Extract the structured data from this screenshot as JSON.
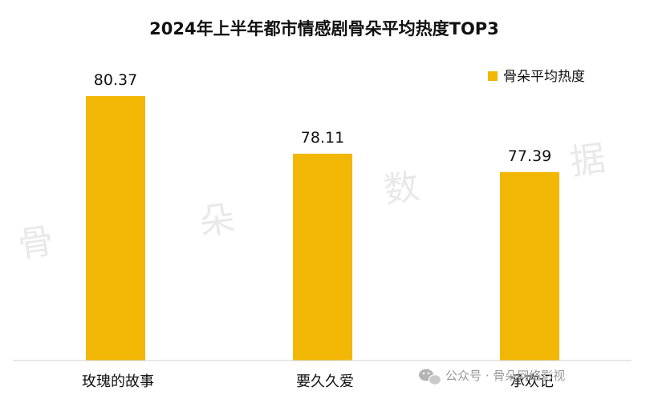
{
  "chart_data": {
    "type": "bar",
    "title": "2024年上半年都市情感剧骨朵平均热度TOP3",
    "categories": [
      "玫瑰的故事",
      "要久久爱",
      "承欢记"
    ],
    "series": [
      {
        "name": "骨朵平均热度",
        "values": [
          80.37,
          78.11,
          77.39
        ]
      }
    ],
    "data_labels": [
      "80.37",
      "78.11",
      "77.39"
    ],
    "ylim": [
      70,
      82
    ],
    "grid": false,
    "legend_position": "top-right",
    "bar_color": "#F2B705"
  },
  "watermark": [
    "骨",
    "朵",
    "数",
    "据"
  ],
  "footer": {
    "text": "公众号 · 骨朵网络影视",
    "icon": "wechat-icon"
  }
}
